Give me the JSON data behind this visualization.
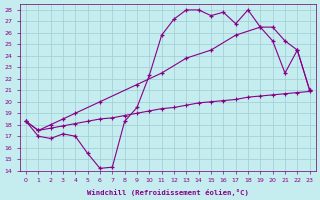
{
  "xlabel": "Windchill (Refroidissement éolien,°C)",
  "bg_color": "#c5ecee",
  "grid_color": "#9dcdd4",
  "line_color": "#880088",
  "xlim": [
    -0.5,
    23.5
  ],
  "ylim": [
    14,
    28.5
  ],
  "xticks": [
    0,
    1,
    2,
    3,
    4,
    5,
    6,
    7,
    8,
    9,
    10,
    11,
    12,
    13,
    14,
    15,
    16,
    17,
    18,
    19,
    20,
    21,
    22,
    23
  ],
  "yticks": [
    14,
    15,
    16,
    17,
    18,
    19,
    20,
    21,
    22,
    23,
    24,
    25,
    26,
    27,
    28
  ],
  "curve1_x": [
    0,
    1,
    2,
    3,
    4,
    5,
    6,
    7,
    8,
    9,
    10,
    11,
    12,
    13,
    14,
    15,
    16,
    17,
    18,
    19,
    20,
    21,
    22,
    23
  ],
  "curve1_y": [
    18.3,
    17.0,
    16.8,
    17.2,
    17.0,
    15.5,
    14.2,
    14.3,
    18.3,
    19.5,
    22.3,
    25.8,
    27.2,
    28.0,
    28.0,
    27.5,
    27.8,
    26.8,
    28.0,
    26.5,
    25.3,
    22.5,
    24.5,
    21.0
  ],
  "curve2_x": [
    0,
    1,
    2,
    3,
    4,
    6,
    9,
    11,
    13,
    15,
    17,
    19,
    20,
    21,
    22,
    23
  ],
  "curve2_y": [
    18.3,
    17.5,
    18.0,
    18.5,
    19.0,
    20.0,
    21.5,
    22.5,
    23.8,
    24.5,
    25.8,
    26.5,
    26.5,
    25.3,
    24.5,
    21.0
  ],
  "curve3_x": [
    0,
    1,
    2,
    3,
    4,
    5,
    6,
    7,
    8,
    9,
    10,
    11,
    12,
    13,
    14,
    15,
    16,
    17,
    18,
    19,
    20,
    21,
    22,
    23
  ],
  "curve3_y": [
    18.3,
    17.5,
    17.7,
    17.9,
    18.1,
    18.3,
    18.5,
    18.6,
    18.8,
    19.0,
    19.2,
    19.4,
    19.5,
    19.7,
    19.9,
    20.0,
    20.1,
    20.2,
    20.4,
    20.5,
    20.6,
    20.7,
    20.8,
    20.9
  ]
}
